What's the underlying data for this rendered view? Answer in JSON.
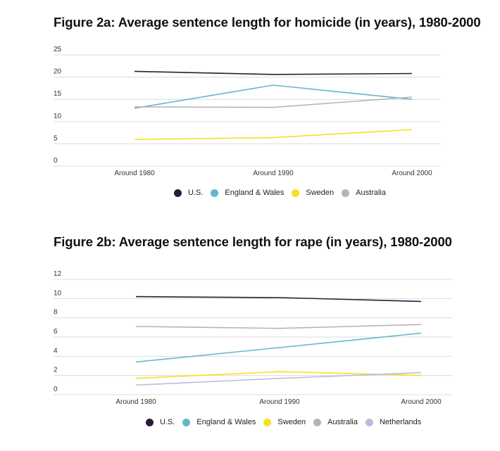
{
  "chart_data": [
    {
      "type": "line",
      "title": "Figure 2a: Average sentence length for homicide (in years), 1980-2000",
      "xlabel": "",
      "ylabel": "",
      "categories": [
        "Around 1980",
        "Around 1990",
        "Around 2000"
      ],
      "ylim": [
        0,
        25
      ],
      "yticks": [
        0,
        5,
        10,
        15,
        20,
        25
      ],
      "grid": true,
      "legend_position": "bottom-center",
      "series": [
        {
          "name": "U.S.",
          "color": "#2d1a3a",
          "values": [
            21.3,
            20.6,
            20.8
          ]
        },
        {
          "name": "England & Wales",
          "color": "#62b8c8",
          "values": [
            13.0,
            18.2,
            15.0
          ]
        },
        {
          "name": "Sweden",
          "color": "#f5e024",
          "values": [
            6.0,
            6.4,
            8.2
          ]
        },
        {
          "name": "Australia",
          "color": "#b5b5b8",
          "values": [
            13.3,
            13.2,
            15.5
          ]
        }
      ]
    },
    {
      "type": "line",
      "title": "Figure 2b: Average sentence length for rape (in years), 1980-2000",
      "xlabel": "",
      "ylabel": "",
      "categories": [
        "Around 1980",
        "Around 1990",
        "Around 2000"
      ],
      "ylim": [
        0,
        12
      ],
      "yticks": [
        0,
        2,
        4,
        6,
        8,
        10,
        12
      ],
      "grid": true,
      "legend_position": "bottom-center",
      "series": [
        {
          "name": "U.S.",
          "color": "#2d1a3a",
          "values": [
            10.2,
            10.1,
            9.7
          ]
        },
        {
          "name": "England & Wales",
          "color": "#62b8c8",
          "values": [
            3.4,
            4.9,
            6.4
          ]
        },
        {
          "name": "Sweden",
          "color": "#f5e024",
          "values": [
            1.7,
            2.4,
            2.0
          ]
        },
        {
          "name": "Australia",
          "color": "#b5b5b8",
          "values": [
            7.1,
            6.9,
            7.3
          ]
        },
        {
          "name": "Netherlands",
          "color": "#b7bde0",
          "values": [
            1.0,
            1.7,
            2.3
          ]
        }
      ]
    }
  ]
}
